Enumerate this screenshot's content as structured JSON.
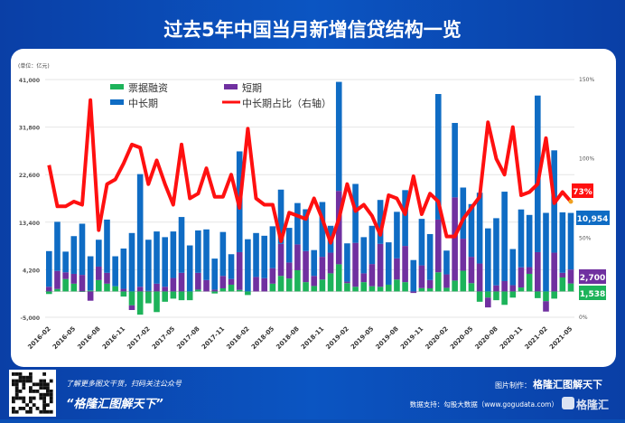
{
  "title": "过去5年中国当月新增信贷结构一览",
  "colors": {
    "bill": "#1db35a",
    "short": "#7030a0",
    "ml": "#0f6cc4",
    "ratio": "#ff1010",
    "bg": "#0b4fb5"
  },
  "chart_data": {
    "type": "bar",
    "subtype": "stacked bar + line (secondary axis)",
    "title": "过去5年中国当月新增信贷结构一览",
    "unit_label": "(单位：亿元)",
    "tick_labels": [
      "2016-02",
      "2016-05",
      "2016-08",
      "2016-11",
      "2017-02",
      "2017-05",
      "2017-08",
      "2017-11",
      "2018-02",
      "2018-05",
      "2018-08",
      "2018-11",
      "2019-02",
      "2019-05",
      "2019-08",
      "2019-11",
      "2020-02",
      "2020-05",
      "2020-08",
      "2020-11",
      "2021-02",
      "2021-05"
    ],
    "tick_every_months": 3,
    "y_ticks": [
      "41,000",
      "31,800",
      "22,600",
      "13,400",
      "4,200",
      "-5,000"
    ],
    "ylim": [
      -5000,
      41000
    ],
    "y2_ticks": [
      "150%",
      "100%",
      "50%",
      "0%"
    ],
    "y2lim": [
      0,
      150
    ],
    "legend": {
      "bill": "票据融资",
      "short": "短期",
      "ml": "中长期",
      "ratio": "中长期占比（右轴）"
    },
    "series": [
      {
        "name": "票据融资",
        "key": "bill",
        "values": [
          -500,
          470,
          2400,
          1500,
          -100,
          200,
          2200,
          1500,
          1000,
          -1000,
          -2700,
          -4500,
          -2300,
          -4000,
          -2000,
          -1400,
          -1700,
          -1700,
          350,
          0,
          -400,
          600,
          1300,
          300,
          -700,
          0,
          0,
          1500,
          3000,
          2500,
          4100,
          1800,
          1050,
          2300,
          3500,
          5250,
          1600,
          900,
          1800,
          1000,
          900,
          1300,
          2300,
          1800,
          0,
          640,
          600,
          3700,
          700,
          2100,
          4000,
          1600,
          -2000,
          -1200,
          -1700,
          -2600,
          -1200,
          760,
          3400,
          -1300,
          -1900,
          -1400,
          2700,
          1538
        ]
      },
      {
        "name": "短期",
        "key": "short",
        "values": [
          900,
          3500,
          1300,
          1900,
          3200,
          -1800,
          2600,
          2100,
          0,
          500,
          -900,
          900,
          100,
          1500,
          900,
          2600,
          3600,
          0,
          3250,
          2200,
          350,
          2400,
          1100,
          7300,
          0,
          2800,
          2570,
          3000,
          6200,
          3100,
          5000,
          6000,
          1950,
          4400,
          4000,
          14200,
          300,
          8500,
          1700,
          4300,
          8300,
          0,
          4100,
          7000,
          -300,
          4400,
          1600,
          10200,
          2600,
          16100,
          6200,
          5100,
          5400,
          -1900,
          1170,
          2000,
          1200,
          3900,
          1300,
          7600,
          -2000,
          7500,
          900,
          2700
        ]
      },
      {
        "name": "中长期",
        "key": "ml",
        "values": [
          6900,
          9500,
          4000,
          7300,
          9900,
          6600,
          5200,
          10300,
          5800,
          7800,
          11300,
          21800,
          9900,
          10100,
          9600,
          9000,
          10800,
          8900,
          8200,
          9800,
          6000,
          8500,
          4800,
          19500,
          10100,
          8500,
          8200,
          8100,
          10500,
          6700,
          8000,
          8100,
          5000,
          10600,
          5200,
          21100,
          7400,
          11400,
          7000,
          7400,
          8500,
          8200,
          9000,
          10800,
          6070,
          9000,
          8900,
          24300,
          4600,
          14400,
          9900,
          10200,
          13700,
          12200,
          13000,
          17300,
          7000,
          11200,
          10100,
          30300,
          15200,
          19800,
          11700,
          10954
        ]
      },
      {
        "name": "中长期占比（右轴）",
        "key": "ratio",
        "axis": "right",
        "values": [
          96,
          70,
          70,
          73,
          71,
          137,
          55,
          84,
          87,
          97,
          109,
          107,
          84,
          99,
          84,
          71,
          109,
          75,
          78,
          94,
          76,
          76,
          90,
          69,
          119,
          75,
          71,
          71,
          48,
          66,
          64,
          62,
          75,
          62,
          47,
          62,
          84,
          67,
          71,
          64,
          52,
          77,
          75,
          65,
          89,
          65,
          78,
          73,
          51,
          51,
          62,
          69,
          76,
          123,
          100,
          90,
          120,
          77,
          79,
          84,
          113,
          72,
          79,
          73
        ]
      }
    ],
    "end_labels": {
      "ratio": "73%",
      "ml": "10,954",
      "short": "2,700",
      "bill": "1,538"
    }
  },
  "footer": {
    "promo": "了解更多图文干货，扫码关注公众号",
    "brand_quote": "“格隆汇图解天下”",
    "made_by_label": "图片制作：",
    "made_by": "格隆汇图解天下",
    "data_source": "数据支持：勾股大数据（www.gogudata.com）",
    "logo": "格隆汇"
  }
}
